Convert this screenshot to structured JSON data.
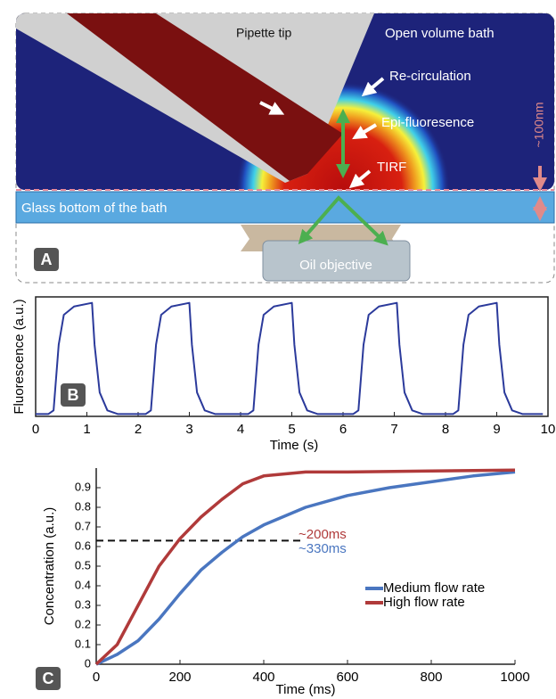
{
  "diagram": {
    "labels": {
      "pipette": "Pipette tip",
      "bath": "Open volume bath",
      "recirculation": "Re-circulation",
      "epi": "Epi-fluoresence",
      "tirf": "TIRF",
      "depth": "~100nm",
      "glass": "Glass bottom of the bath",
      "objective": "Oil objective"
    },
    "panel": "A"
  },
  "chart_data": [
    {
      "type": "line",
      "panel": "B",
      "x_label": "Time (s)",
      "y_label": "Fluorescence (a.u.)",
      "color": "#2b3a9b",
      "x": [
        0,
        0.25,
        0.35,
        0.45,
        0.55,
        0.75,
        1.1,
        1.15,
        1.25,
        1.4,
        1.6,
        2.15,
        2.25,
        2.35,
        2.45,
        2.65,
        3.0,
        3.05,
        3.15,
        3.3,
        3.5,
        4.15,
        4.25,
        4.35,
        4.45,
        4.65,
        5.0,
        5.05,
        5.15,
        5.3,
        5.5,
        6.2,
        6.3,
        6.4,
        6.5,
        6.7,
        7.05,
        7.1,
        7.2,
        7.35,
        7.55,
        8.15,
        8.25,
        8.35,
        8.45,
        8.65,
        9.0,
        9.05,
        9.15,
        9.3,
        9.5,
        9.9
      ],
      "values": [
        0.02,
        0.02,
        0.05,
        0.6,
        0.85,
        0.92,
        0.95,
        0.6,
        0.2,
        0.05,
        0.02,
        0.02,
        0.05,
        0.6,
        0.85,
        0.92,
        0.95,
        0.6,
        0.2,
        0.05,
        0.02,
        0.02,
        0.05,
        0.6,
        0.85,
        0.92,
        0.95,
        0.6,
        0.2,
        0.05,
        0.02,
        0.02,
        0.05,
        0.6,
        0.85,
        0.92,
        0.95,
        0.6,
        0.2,
        0.05,
        0.02,
        0.02,
        0.05,
        0.6,
        0.85,
        0.92,
        0.95,
        0.6,
        0.2,
        0.05,
        0.02,
        0.02
      ],
      "xlim": [
        0,
        10
      ],
      "xticks": [
        0,
        1,
        2,
        3,
        4,
        5,
        6,
        7,
        8,
        9,
        10
      ],
      "ylim": [
        0,
        1
      ]
    },
    {
      "type": "line",
      "panel": "C",
      "x_label": "Time (ms)",
      "y_label": "Concentration (a.u.)",
      "series": [
        {
          "name": "Medium flow rate",
          "color": "#4a76c0",
          "x": [
            0,
            50,
            100,
            150,
            200,
            250,
            300,
            350,
            400,
            500,
            600,
            700,
            800,
            900,
            1000
          ],
          "values": [
            0,
            0.05,
            0.12,
            0.23,
            0.36,
            0.48,
            0.57,
            0.65,
            0.71,
            0.8,
            0.86,
            0.9,
            0.93,
            0.96,
            0.98
          ]
        },
        {
          "name": "High flow rate",
          "color": "#b03a3a",
          "x": [
            0,
            50,
            100,
            150,
            200,
            250,
            300,
            350,
            400,
            500,
            600,
            800,
            1000
          ],
          "values": [
            0,
            0.1,
            0.3,
            0.5,
            0.64,
            0.75,
            0.84,
            0.92,
            0.96,
            0.98,
            0.98,
            0.985,
            0.99
          ]
        }
      ],
      "reference_line": {
        "y": 0.63,
        "x": [
          0,
          490
        ]
      },
      "annotations": [
        {
          "text": "~200ms",
          "color": "#b03a3a"
        },
        {
          "text": "~330ms",
          "color": "#4a76c0"
        }
      ],
      "xlim": [
        0,
        1000
      ],
      "xticks": [
        0,
        200,
        400,
        600,
        800,
        1000
      ],
      "ylim": [
        0,
        1
      ],
      "yticks": [
        0,
        0.1,
        0.2,
        0.3,
        0.4,
        0.5,
        0.6,
        0.7,
        0.8,
        0.9
      ]
    }
  ]
}
